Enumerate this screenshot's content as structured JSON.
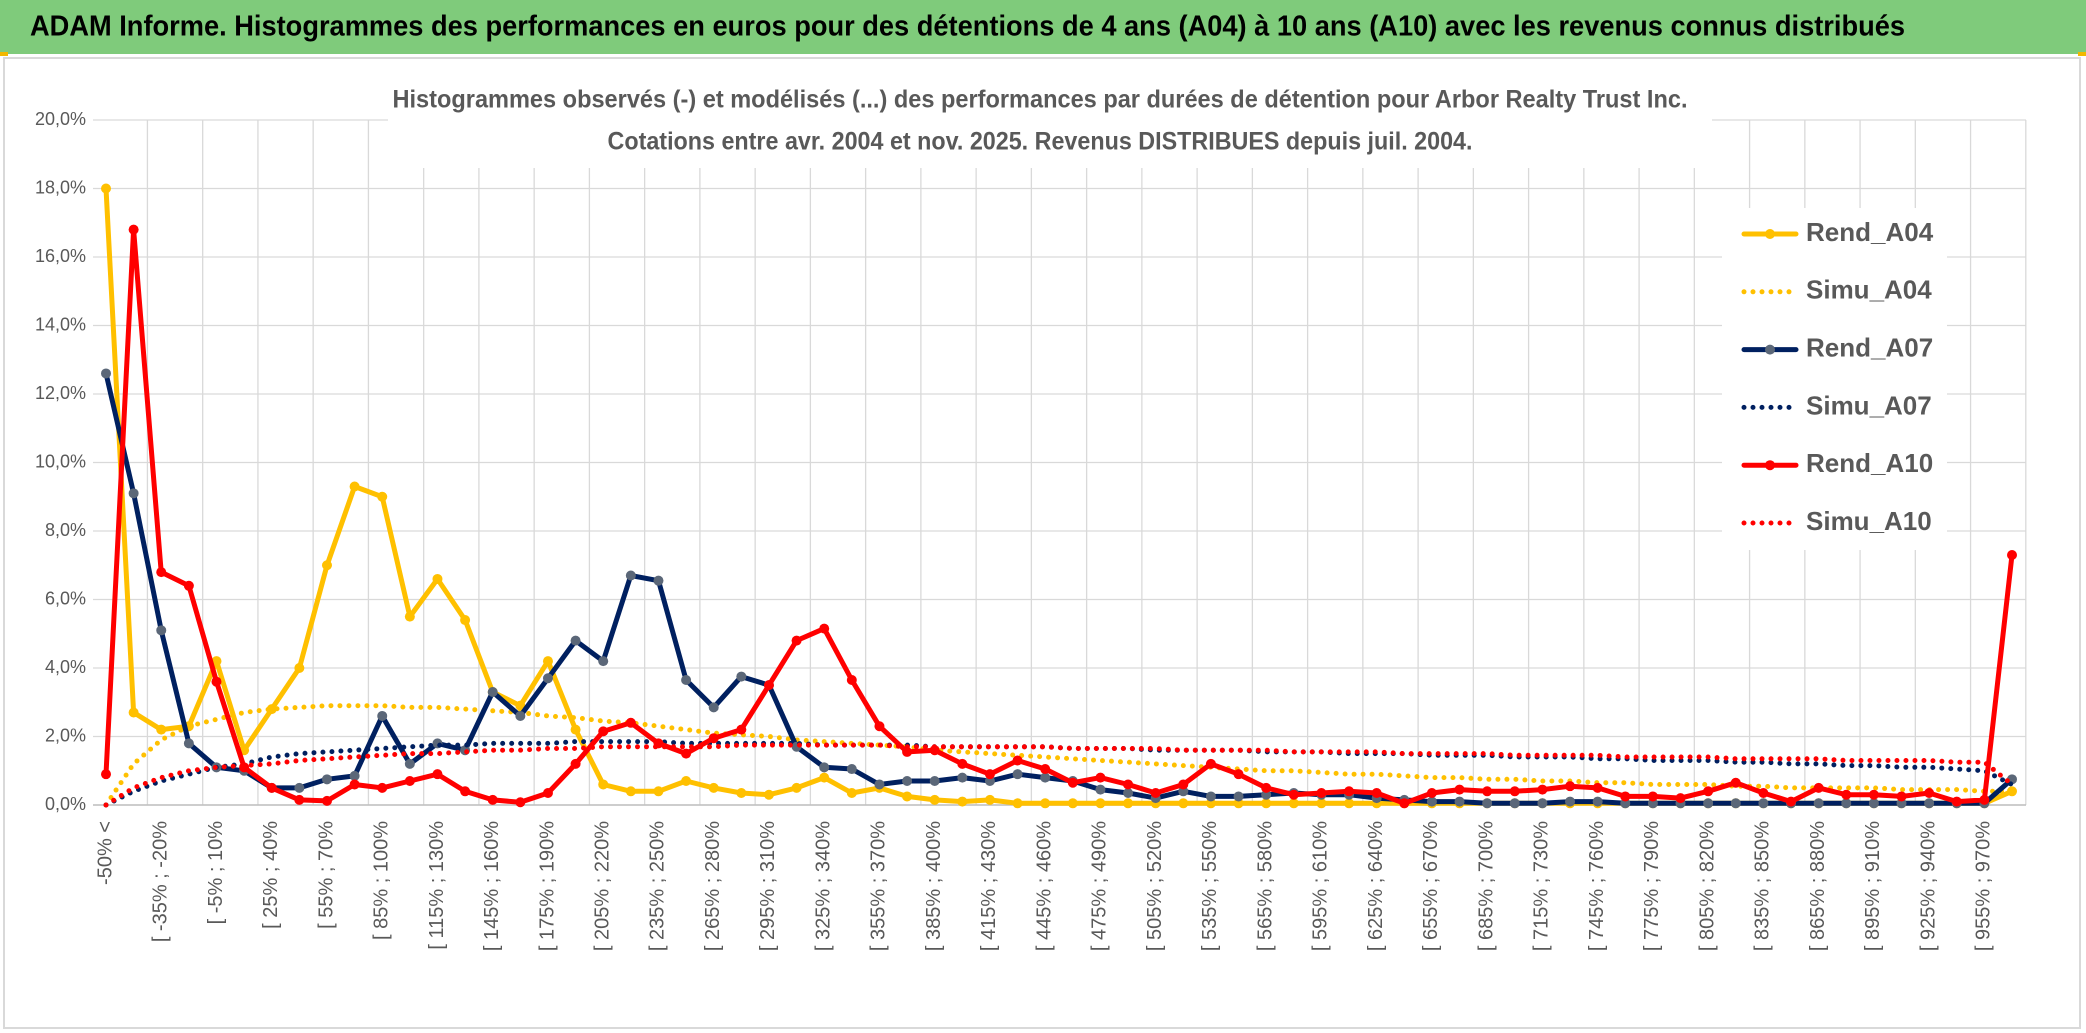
{
  "header": "ADAM Informe. Histogrammes des performances en euros pour des détentions de 4 ans (A04) à 10 ans (A10) avec les revenus connus distribués",
  "chart_data": {
    "type": "line",
    "title": "Histogrammes observés (-) et modélisés (...) des performances par durées de détention pour Arbor Realty Trust Inc.",
    "subtitle": "Cotations entre avr. 2004 et nov. 2025. Revenus DISTRIBUES depuis juil. 2004.",
    "categories": [
      "-50% <",
      null,
      "[ -35% ; -20%",
      null,
      "[ -5% ; 10%",
      null,
      "[ 25% ; 40%",
      null,
      "[ 55% ; 70%",
      null,
      "[ 85% ; 100%",
      null,
      "[ 115% ; 130%",
      null,
      "[ 145% ; 160%",
      null,
      "[ 175% ; 190%",
      null,
      "[ 205% ; 220%",
      null,
      "[ 235% ; 250%",
      null,
      "[ 265% ; 280%",
      null,
      "[ 295% ; 310%",
      null,
      "[ 325% ; 340%",
      null,
      "[ 355% ; 370%",
      null,
      "[ 385% ; 400%",
      null,
      "[ 415% ; 430%",
      null,
      "[ 445% ; 460%",
      null,
      "[ 475% ; 490%",
      null,
      "[ 505% ; 520%",
      null,
      "[ 535% ; 550%",
      null,
      "[ 565% ; 580%",
      null,
      "[ 595% ; 610%",
      null,
      "[ 625% ; 640%",
      null,
      "[ 655% ; 670%",
      null,
      "[ 685% ; 700%",
      null,
      "[ 715% ; 730%",
      null,
      "[ 745% ; 760%",
      null,
      "[ 775% ; 790%",
      null,
      "[ 805% ; 820%",
      null,
      "[ 835% ; 850%",
      null,
      "[ 865% ; 880%",
      null,
      "[ 895% ; 910%",
      null,
      "[ 925% ; 940%",
      null,
      "[ 955% ; 970%",
      null
    ],
    "ylim": [
      0,
      20
    ],
    "yticks": [
      {
        "value": 0,
        "label": "0,0%"
      },
      {
        "value": 2,
        "label": "2,0%"
      },
      {
        "value": 4,
        "label": "4,0%"
      },
      {
        "value": 6,
        "label": "6,0%"
      },
      {
        "value": 8,
        "label": "8,0%"
      },
      {
        "value": 10,
        "label": "10,0%"
      },
      {
        "value": 12,
        "label": "12,0%"
      },
      {
        "value": 14,
        "label": "14,0%"
      },
      {
        "value": 16,
        "label": "16,0%"
      },
      {
        "value": 18,
        "label": "18,0%"
      },
      {
        "value": 20,
        "label": "20,0%"
      }
    ],
    "grid": true,
    "legend_position": "upper right",
    "series": [
      {
        "name": "Rend_A04",
        "color": "#ffc000",
        "style": "solid",
        "marker_color": "#ffc000",
        "values": [
          18.0,
          2.7,
          2.2,
          2.3,
          4.2,
          1.6,
          2.8,
          4.0,
          7.0,
          9.3,
          9.0,
          5.5,
          6.6,
          5.4,
          3.3,
          2.9,
          4.2,
          2.2,
          0.6,
          0.4,
          0.4,
          0.7,
          0.5,
          0.35,
          0.3,
          0.5,
          0.8,
          0.35,
          0.5,
          0.25,
          0.15,
          0.1,
          0.15,
          0.05,
          0.05,
          0.05,
          0.05,
          0.05,
          0.05,
          0.05,
          0.05,
          0.05,
          0.05,
          0.05,
          0.05,
          0.05,
          0.05,
          0.05,
          0.05,
          0.05,
          0.05,
          0.05,
          0.05,
          0.05,
          0.05,
          0.05,
          0.05,
          0.05,
          0.05,
          0.05,
          0.05,
          0.05,
          0.05,
          0.05,
          0.05,
          0.05,
          0.05,
          0.05,
          0.05,
          0.4
        ]
      },
      {
        "name": "Simu_A04",
        "color": "#ffc000",
        "style": "dotted",
        "values": [
          0,
          1.2,
          1.9,
          2.3,
          2.5,
          2.7,
          2.8,
          2.85,
          2.9,
          2.9,
          2.9,
          2.85,
          2.85,
          2.8,
          2.75,
          2.7,
          2.6,
          2.55,
          2.45,
          2.4,
          2.3,
          2.2,
          2.1,
          2.05,
          2.0,
          1.9,
          1.85,
          1.8,
          1.75,
          1.7,
          1.6,
          1.55,
          1.5,
          1.45,
          1.4,
          1.35,
          1.3,
          1.25,
          1.2,
          1.15,
          1.1,
          1.05,
          1.0,
          1.0,
          0.95,
          0.9,
          0.9,
          0.85,
          0.8,
          0.8,
          0.75,
          0.75,
          0.7,
          0.7,
          0.65,
          0.65,
          0.6,
          0.6,
          0.6,
          0.55,
          0.55,
          0.5,
          0.5,
          0.5,
          0.5,
          0.45,
          0.45,
          0.45,
          0.4,
          0.4
        ]
      },
      {
        "name": "Rend_A07",
        "color": "#002060",
        "style": "solid",
        "marker_color": "#5b6778",
        "values": [
          12.6,
          9.1,
          5.1,
          1.8,
          1.1,
          1.0,
          0.5,
          0.5,
          0.75,
          0.85,
          2.6,
          1.2,
          1.8,
          1.6,
          3.3,
          2.6,
          3.7,
          4.8,
          4.2,
          6.7,
          6.55,
          3.65,
          2.85,
          3.75,
          3.5,
          1.7,
          1.1,
          1.05,
          0.6,
          0.7,
          0.7,
          0.8,
          0.7,
          0.9,
          0.8,
          0.7,
          0.45,
          0.35,
          0.2,
          0.4,
          0.25,
          0.25,
          0.3,
          0.35,
          0.3,
          0.3,
          0.2,
          0.15,
          0.1,
          0.1,
          0.05,
          0.05,
          0.05,
          0.1,
          0.1,
          0.05,
          0.05,
          0.05,
          0.05,
          0.05,
          0.05,
          0.05,
          0.05,
          0.05,
          0.05,
          0.05,
          0.05,
          0.05,
          0.05,
          0.75
        ]
      },
      {
        "name": "Simu_A07",
        "color": "#002060",
        "style": "dotted",
        "values": [
          0,
          0.4,
          0.7,
          0.9,
          1.1,
          1.2,
          1.4,
          1.5,
          1.55,
          1.6,
          1.65,
          1.7,
          1.75,
          1.75,
          1.8,
          1.8,
          1.8,
          1.85,
          1.85,
          1.85,
          1.85,
          1.8,
          1.8,
          1.8,
          1.8,
          1.8,
          1.75,
          1.75,
          1.75,
          1.75,
          1.7,
          1.7,
          1.7,
          1.7,
          1.7,
          1.65,
          1.65,
          1.65,
          1.6,
          1.6,
          1.6,
          1.6,
          1.55,
          1.55,
          1.55,
          1.5,
          1.5,
          1.5,
          1.45,
          1.45,
          1.45,
          1.4,
          1.4,
          1.4,
          1.35,
          1.35,
          1.3,
          1.3,
          1.3,
          1.25,
          1.25,
          1.2,
          1.2,
          1.15,
          1.15,
          1.1,
          1.1,
          1.05,
          1.0,
          0.6
        ]
      },
      {
        "name": "Rend_A10",
        "color": "#ff0000",
        "style": "solid",
        "marker_color": "#ff0000",
        "values": [
          0.9,
          16.8,
          6.8,
          6.4,
          3.6,
          1.1,
          0.5,
          0.15,
          0.12,
          0.6,
          0.5,
          0.7,
          0.9,
          0.4,
          0.15,
          0.08,
          0.35,
          1.2,
          2.15,
          2.4,
          1.8,
          1.5,
          1.95,
          2.2,
          3.5,
          4.8,
          5.15,
          3.65,
          2.3,
          1.55,
          1.6,
          1.2,
          0.9,
          1.3,
          1.05,
          0.65,
          0.8,
          0.6,
          0.35,
          0.6,
          1.2,
          0.9,
          0.5,
          0.3,
          0.35,
          0.4,
          0.35,
          0.05,
          0.35,
          0.45,
          0.4,
          0.4,
          0.45,
          0.55,
          0.5,
          0.25,
          0.25,
          0.2,
          0.4,
          0.65,
          0.35,
          0.1,
          0.5,
          0.3,
          0.3,
          0.25,
          0.35,
          0.1,
          0.15,
          7.3
        ]
      },
      {
        "name": "Simu_A10",
        "color": "#ff0000",
        "style": "dotted",
        "values": [
          0,
          0.5,
          0.8,
          1.0,
          1.1,
          1.15,
          1.2,
          1.3,
          1.35,
          1.4,
          1.45,
          1.5,
          1.5,
          1.55,
          1.6,
          1.6,
          1.65,
          1.65,
          1.7,
          1.7,
          1.7,
          1.7,
          1.7,
          1.75,
          1.75,
          1.75,
          1.75,
          1.75,
          1.75,
          1.7,
          1.7,
          1.7,
          1.7,
          1.7,
          1.7,
          1.65,
          1.65,
          1.65,
          1.65,
          1.6,
          1.6,
          1.6,
          1.6,
          1.55,
          1.55,
          1.55,
          1.55,
          1.5,
          1.5,
          1.5,
          1.5,
          1.45,
          1.45,
          1.45,
          1.45,
          1.4,
          1.4,
          1.4,
          1.4,
          1.35,
          1.35,
          1.35,
          1.35,
          1.3,
          1.3,
          1.3,
          1.3,
          1.25,
          1.25,
          0.6
        ]
      }
    ]
  }
}
